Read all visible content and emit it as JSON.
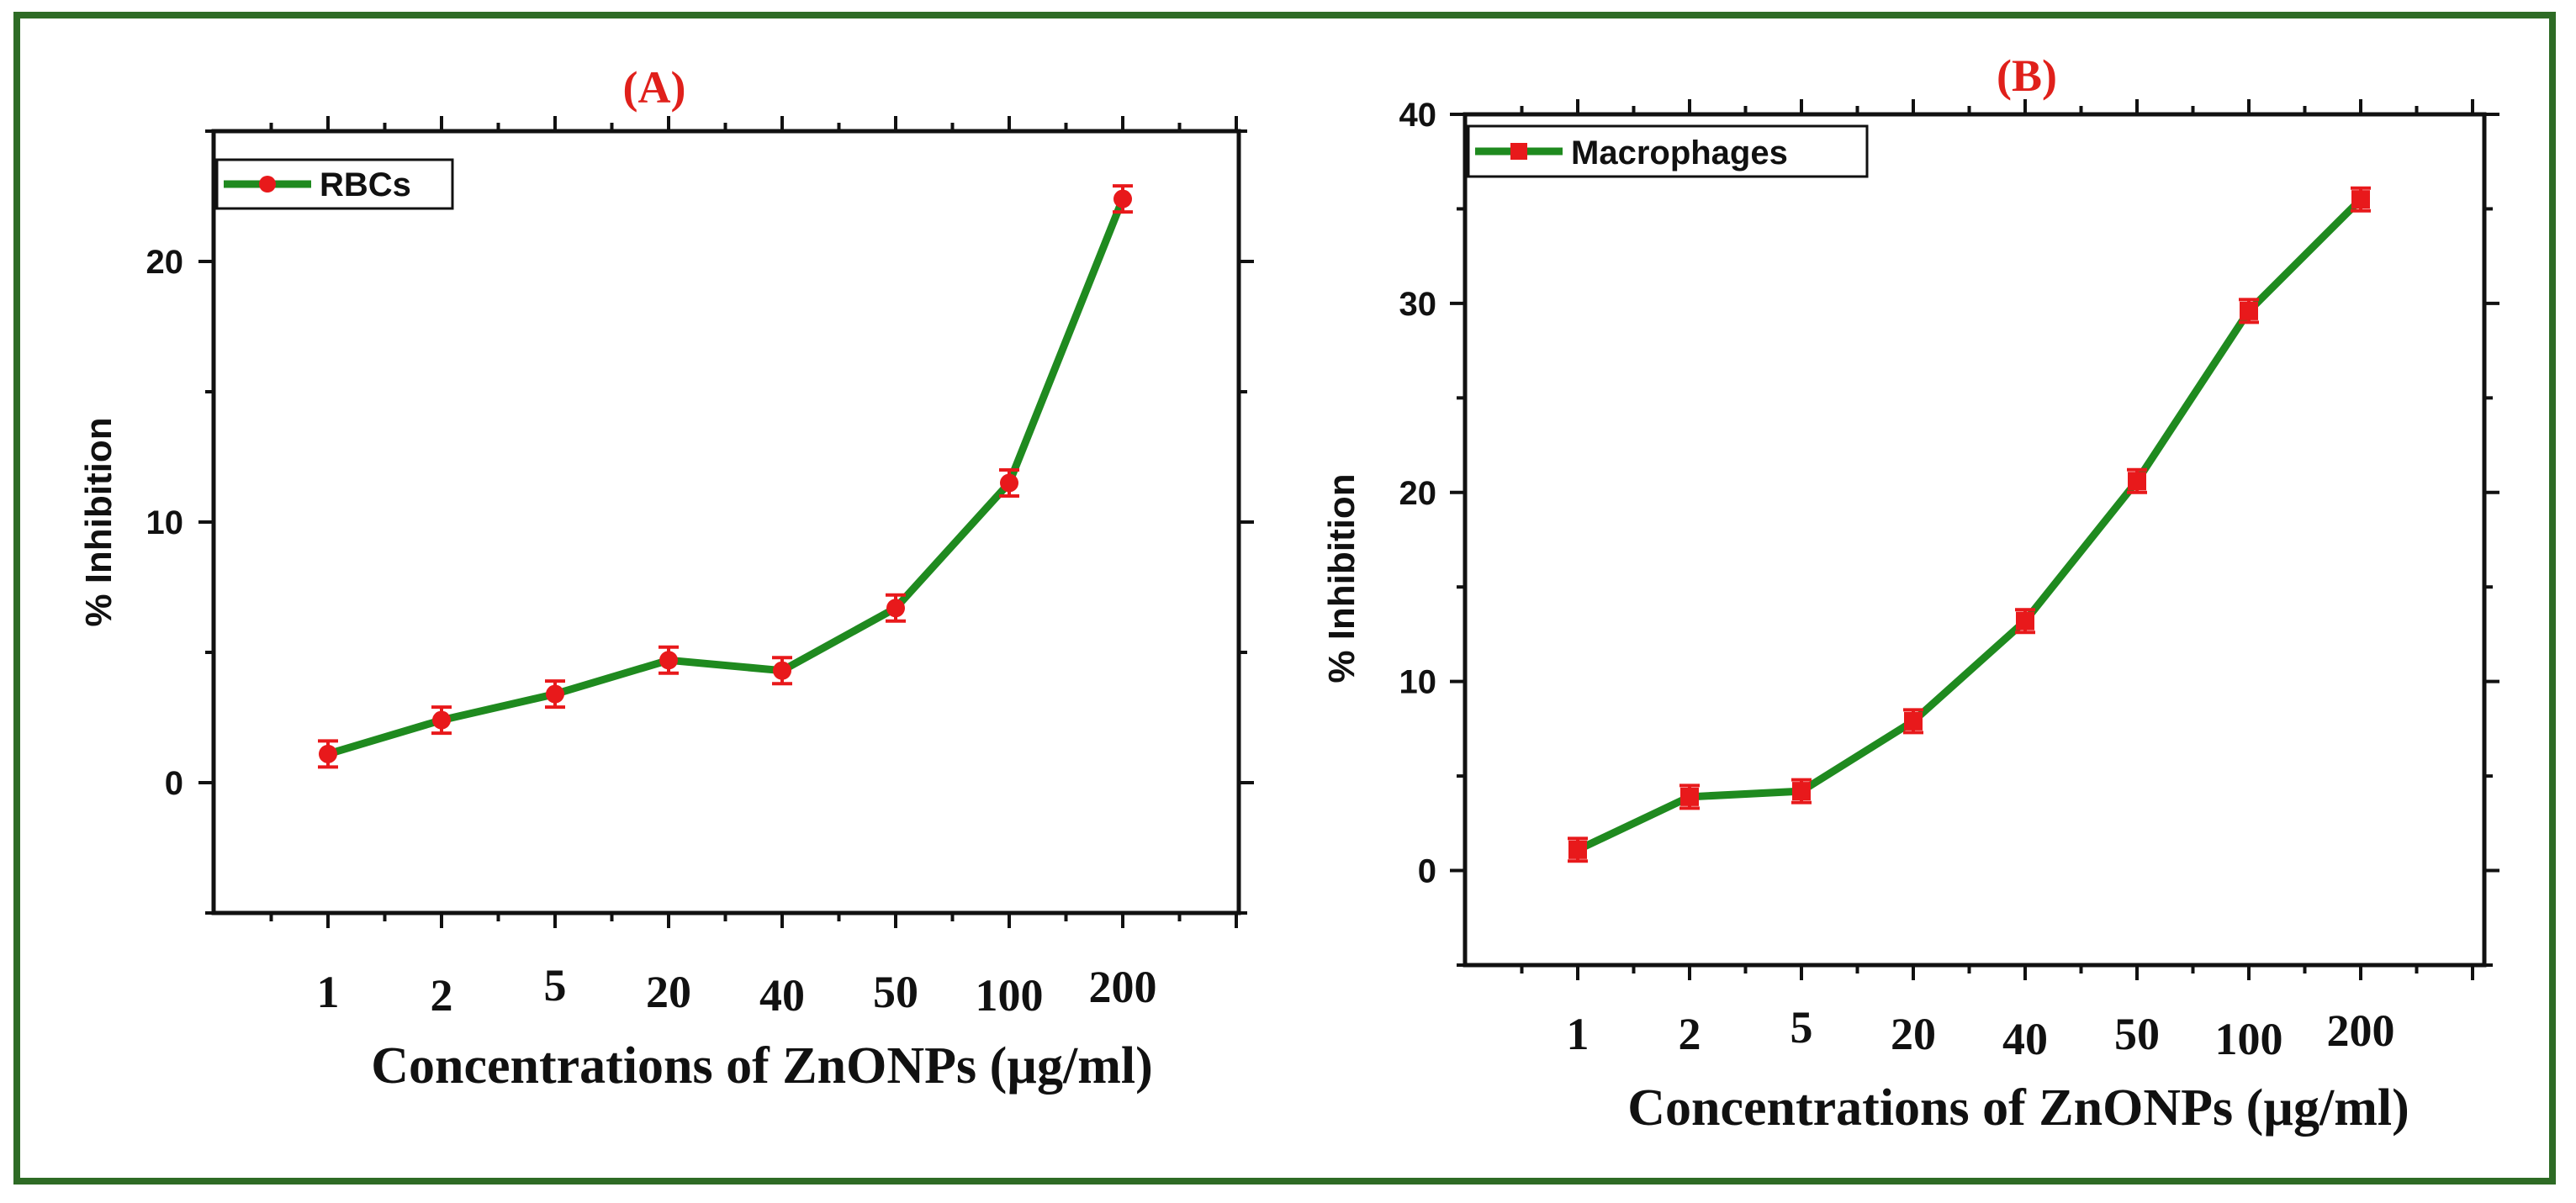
{
  "figure": {
    "frame_color": "#2e6b25"
  },
  "chart_data": [
    {
      "panel": "A",
      "type": "line",
      "title": "(A)",
      "title_color": "#e0201b",
      "xlabel": "Concentrations of ZnONPs (µg/ml)",
      "ylabel": "% Inhibition",
      "categories": [
        "1",
        "2",
        "5",
        "20",
        "40",
        "50",
        "100",
        "200"
      ],
      "series": [
        {
          "name": "RBCs",
          "marker": "circle",
          "line_color": "#1f8a1f",
          "marker_color": "#e8191b",
          "values": [
            1.1,
            2.4,
            3.4,
            4.7,
            4.3,
            6.7,
            11.5,
            22.4
          ],
          "errors": [
            0.5,
            0.5,
            0.5,
            0.5,
            0.5,
            0.5,
            0.5,
            0.5
          ]
        }
      ],
      "ylim": [
        -5,
        25
      ],
      "yticks": [
        0,
        10,
        20
      ],
      "legend_position": "top-left"
    },
    {
      "panel": "B",
      "type": "line",
      "title": "(B)",
      "title_color": "#e0201b",
      "xlabel": "Concentrations of ZnONPs (µg/ml)",
      "ylabel": "% Inhibition",
      "categories": [
        "1",
        "2",
        "5",
        "20",
        "40",
        "50",
        "100",
        "200"
      ],
      "series": [
        {
          "name": "Macrophages",
          "marker": "square",
          "line_color": "#1f8a1f",
          "marker_color": "#e8191b",
          "values": [
            1.1,
            3.9,
            4.2,
            7.9,
            13.2,
            20.6,
            29.6,
            35.5
          ],
          "errors": [
            0.6,
            0.6,
            0.6,
            0.6,
            0.6,
            0.6,
            0.6,
            0.6
          ]
        }
      ],
      "ylim": [
        -5,
        40
      ],
      "yticks": [
        0,
        10,
        20,
        30,
        40
      ],
      "legend_position": "top-left"
    }
  ]
}
